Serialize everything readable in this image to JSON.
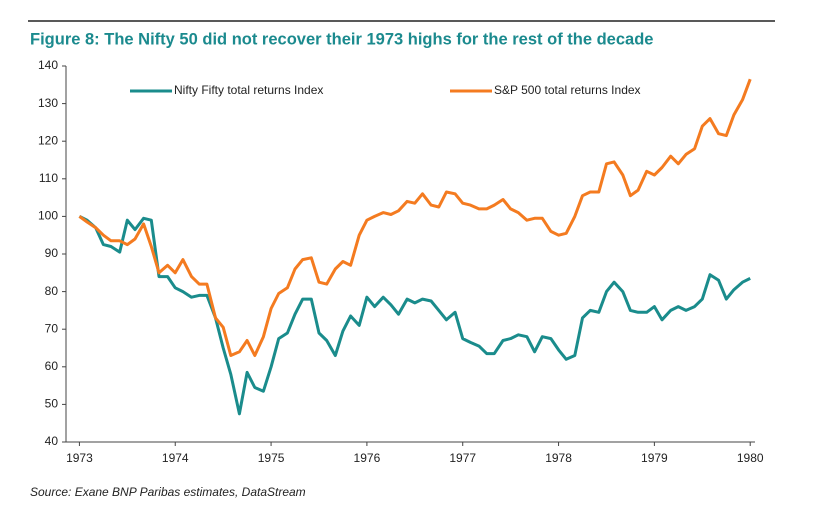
{
  "chart_data": {
    "type": "line",
    "title": "Figure 8: The Nifty 50 did not recover their 1973 highs for the rest of the decade",
    "source": "Source: Exane BNP Paribas estimates, DataStream",
    "x": [
      1973,
      1973.08,
      1973.17,
      1973.25,
      1973.33,
      1973.42,
      1973.5,
      1973.58,
      1973.67,
      1973.75,
      1973.83,
      1973.92,
      1974,
      1974.08,
      1974.17,
      1974.25,
      1974.33,
      1974.42,
      1974.5,
      1974.58,
      1974.67,
      1974.75,
      1974.83,
      1974.92,
      1975,
      1975.08,
      1975.17,
      1975.25,
      1975.33,
      1975.42,
      1975.5,
      1975.58,
      1975.67,
      1975.75,
      1975.83,
      1975.92,
      1976,
      1976.08,
      1976.17,
      1976.25,
      1976.33,
      1976.42,
      1976.5,
      1976.58,
      1976.67,
      1976.75,
      1976.83,
      1976.92,
      1977,
      1977.08,
      1977.17,
      1977.25,
      1977.33,
      1977.42,
      1977.5,
      1977.58,
      1977.67,
      1977.75,
      1977.83,
      1977.92,
      1978,
      1978.08,
      1978.17,
      1978.25,
      1978.33,
      1978.42,
      1978.5,
      1978.58,
      1978.67,
      1978.75,
      1978.83,
      1978.92,
      1979,
      1979.08,
      1979.17,
      1979.25,
      1979.33,
      1979.42,
      1979.5,
      1979.58,
      1979.67,
      1979.75,
      1979.83,
      1979.92,
      1980
    ],
    "series": [
      {
        "name": "Nifty Fifty total returns Index",
        "color": "#1a8c8c",
        "values": [
          100,
          99,
          97,
          92.5,
          92,
          90.5,
          99,
          96.5,
          99.5,
          99,
          84,
          84,
          81,
          80,
          78.5,
          79,
          79,
          73,
          65,
          58,
          47.5,
          58.5,
          54.5,
          53.5,
          60,
          67.5,
          69,
          74,
          78,
          78,
          69,
          67,
          63,
          69.5,
          73.5,
          71,
          78.5,
          76,
          78.5,
          76.5,
          74,
          78,
          77,
          78,
          77.5,
          75,
          72.5,
          74.5,
          67.5,
          66.5,
          65.5,
          63.5,
          63.5,
          67,
          67.5,
          68.5,
          68,
          64,
          68,
          67.5,
          64.5,
          62,
          63,
          73,
          75,
          74.5,
          80,
          82.5,
          80,
          75,
          74.5,
          74.5,
          76,
          72.5,
          75,
          76,
          75,
          76,
          78,
          84.5,
          83,
          78,
          80.5,
          82.5,
          83.5
        ]
      },
      {
        "name": "S&P 500 total returns Index",
        "color": "#f47b20",
        "values": [
          100,
          98.5,
          97,
          95,
          93.5,
          93.5,
          92.5,
          94,
          98,
          92,
          85,
          87,
          85,
          88.5,
          84,
          82,
          82,
          73,
          70.5,
          63,
          64,
          67,
          63,
          68,
          75.5,
          79.5,
          81,
          86,
          88.5,
          89,
          82.5,
          82,
          86,
          88,
          87,
          95,
          99,
          100,
          101,
          100.5,
          101.5,
          104,
          103.5,
          106,
          103,
          102.5,
          106.5,
          106,
          103.5,
          103,
          102,
          102,
          103,
          104.5,
          102,
          101,
          99,
          99.5,
          99.5,
          96,
          95,
          95.5,
          100,
          105.5,
          106.5,
          106.5,
          114,
          114.5,
          111,
          105.5,
          107,
          112,
          111,
          113,
          116,
          114,
          116.5,
          118,
          124,
          126,
          122,
          121.5,
          127,
          131,
          136.5
        ]
      }
    ],
    "xlim": [
      1972.86,
      1980.05
    ],
    "xticks": [
      1973,
      1974,
      1975,
      1976,
      1977,
      1978,
      1979,
      1980
    ],
    "ylim": [
      40,
      140
    ],
    "yticks": [
      40,
      50,
      60,
      70,
      80,
      90,
      100,
      110,
      120,
      130,
      140
    ],
    "legend": "top"
  }
}
